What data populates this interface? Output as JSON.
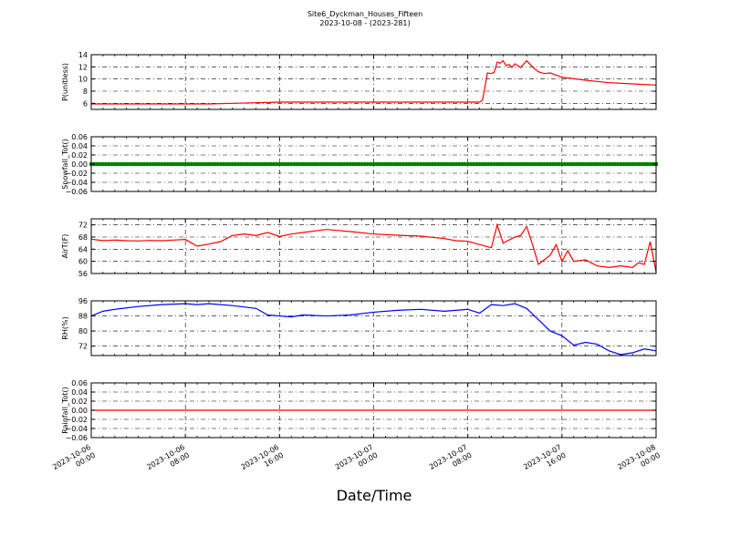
{
  "figure": {
    "title": "Site6_Dyckman_Houses_Fifteen",
    "subtitle": "2023-10-08 - (2023-281)",
    "xlabel": "Date/Time"
  },
  "chart_data": [
    {
      "type": "line",
      "ylabel": "P(unitless)",
      "ylim": [
        5,
        14
      ],
      "yticks": [
        "6",
        "8",
        "10",
        "12",
        "14"
      ],
      "ytick_values": [
        6,
        8,
        10,
        12,
        14
      ],
      "color": "#ff0000",
      "grid": true,
      "x": [
        "2023-10-06 00:00",
        "2023-10-06 04:00",
        "2023-10-06 08:00",
        "2023-10-06 10:00",
        "2023-10-06 12:00",
        "2023-10-06 14:00",
        "2023-10-06 16:00",
        "2023-10-06 20:00",
        "2023-10-07 00:00",
        "2023-10-07 04:00",
        "2023-10-07 08:00",
        "2023-10-07 09:00",
        "2023-10-07 09:15",
        "2023-10-07 09:40",
        "2023-10-07 10:00",
        "2023-10-07 10:15",
        "2023-10-07 10:30",
        "2023-10-07 10:45",
        "2023-10-07 11:00",
        "2023-10-07 11:15",
        "2023-10-07 11:30",
        "2023-10-07 11:45",
        "2023-10-07 12:00",
        "2023-10-07 12:30",
        "2023-10-07 13:00",
        "2023-10-07 13:30",
        "2023-10-07 14:00",
        "2023-10-07 14:30",
        "2023-10-07 15:00",
        "2023-10-07 16:00",
        "2023-10-07 18:00",
        "2023-10-07 20:00",
        "2023-10-07 22:00",
        "2023-10-08 00:00"
      ],
      "values": [
        5.9,
        5.9,
        5.9,
        5.9,
        6.0,
        6.1,
        6.2,
        6.2,
        6.2,
        6.2,
        6.2,
        6.2,
        6.5,
        11.0,
        10.9,
        11.1,
        12.8,
        12.6,
        13.0,
        12.2,
        12.4,
        11.9,
        12.5,
        11.9,
        13.0,
        12.0,
        11.2,
        10.9,
        11.0,
        10.3,
        9.8,
        9.4,
        9.2,
        9.0
      ]
    },
    {
      "type": "line",
      "ylabel": "Snowfall_Tot()",
      "ylim": [
        -0.06,
        0.06
      ],
      "yticks": [
        "0.06",
        "0.04",
        "0.02",
        "0.00",
        "−0.02",
        "−0.04",
        "−0.06"
      ],
      "ytick_values": [
        0.06,
        0.04,
        0.02,
        0.0,
        -0.02,
        -0.04,
        -0.06
      ],
      "color": "#008000",
      "markers": true,
      "grid": true,
      "x": [
        "2023-10-06 00:00",
        "2023-10-08 00:00"
      ],
      "values": [
        0.0,
        0.0
      ]
    },
    {
      "type": "line",
      "ylabel": "AirT(F)",
      "ylim": [
        56,
        74
      ],
      "yticks": [
        "56",
        "60",
        "64",
        "68",
        "72"
      ],
      "ytick_values": [
        56,
        60,
        64,
        68,
        72
      ],
      "color": "#ff0000",
      "grid": true,
      "x": [
        "2023-10-06 00:00",
        "2023-10-06 01:00",
        "2023-10-06 02:00",
        "2023-10-06 03:00",
        "2023-10-06 04:00",
        "2023-10-06 05:00",
        "2023-10-06 06:00",
        "2023-10-06 07:00",
        "2023-10-06 08:00",
        "2023-10-06 09:00",
        "2023-10-06 10:00",
        "2023-10-06 11:00",
        "2023-10-06 12:00",
        "2023-10-06 13:00",
        "2023-10-06 14:00",
        "2023-10-06 15:00",
        "2023-10-06 16:00",
        "2023-10-06 17:00",
        "2023-10-06 18:00",
        "2023-10-06 20:00",
        "2023-10-06 22:00",
        "2023-10-07 00:00",
        "2023-10-07 02:00",
        "2023-10-07 04:00",
        "2023-10-07 06:00",
        "2023-10-07 07:00",
        "2023-10-07 08:00",
        "2023-10-07 09:00",
        "2023-10-07 10:00",
        "2023-10-07 10:30",
        "2023-10-07 11:00",
        "2023-10-07 12:00",
        "2023-10-07 12:30",
        "2023-10-07 13:00",
        "2023-10-07 13:30",
        "2023-10-07 14:00",
        "2023-10-07 14:30",
        "2023-10-07 15:00",
        "2023-10-07 15:30",
        "2023-10-07 16:00",
        "2023-10-07 16:30",
        "2023-10-07 17:00",
        "2023-10-07 18:00",
        "2023-10-07 19:00",
        "2023-10-07 20:00",
        "2023-10-07 21:00",
        "2023-10-07 22:00",
        "2023-10-07 22:30",
        "2023-10-07 23:00",
        "2023-10-07 23:30",
        "2023-10-08 00:00"
      ],
      "values": [
        67.3,
        66.8,
        67.0,
        66.8,
        66.7,
        66.9,
        66.8,
        67.0,
        67.2,
        65.0,
        65.7,
        66.5,
        68.5,
        69.0,
        68.5,
        69.5,
        68.2,
        69.0,
        69.5,
        70.5,
        69.8,
        69.0,
        68.6,
        68.3,
        67.5,
        66.8,
        66.6,
        65.5,
        64.5,
        72.0,
        66.0,
        68.0,
        68.5,
        71.5,
        65.5,
        59.0,
        60.5,
        62.0,
        65.5,
        60.0,
        63.5,
        60.0,
        60.5,
        58.5,
        58.0,
        58.5,
        58.0,
        59.5,
        59.0,
        66.5,
        56.5
      ]
    },
    {
      "type": "line",
      "ylabel": "RH(%)",
      "ylim": [
        67,
        96
      ],
      "yticks": [
        "72",
        "80",
        "88",
        "96"
      ],
      "ytick_values": [
        72,
        80,
        88,
        96
      ],
      "color": "#0000ff",
      "grid": true,
      "x": [
        "2023-10-06 00:00",
        "2023-10-06 01:00",
        "2023-10-06 02:00",
        "2023-10-06 04:00",
        "2023-10-06 06:00",
        "2023-10-06 08:00",
        "2023-10-06 09:00",
        "2023-10-06 10:00",
        "2023-10-06 12:00",
        "2023-10-06 14:00",
        "2023-10-06 15:00",
        "2023-10-06 16:00",
        "2023-10-06 17:00",
        "2023-10-06 18:00",
        "2023-10-06 20:00",
        "2023-10-06 22:00",
        "2023-10-07 00:00",
        "2023-10-07 02:00",
        "2023-10-07 04:00",
        "2023-10-07 06:00",
        "2023-10-07 08:00",
        "2023-10-07 09:00",
        "2023-10-07 10:00",
        "2023-10-07 11:00",
        "2023-10-07 12:00",
        "2023-10-07 13:00",
        "2023-10-07 14:00",
        "2023-10-07 15:00",
        "2023-10-07 16:00",
        "2023-10-07 17:00",
        "2023-10-07 18:00",
        "2023-10-07 19:00",
        "2023-10-07 20:00",
        "2023-10-07 21:00",
        "2023-10-07 22:00",
        "2023-10-07 23:00",
        "2023-10-08 00:00"
      ],
      "values": [
        88.0,
        90.5,
        91.5,
        93.0,
        94.0,
        94.5,
        94.0,
        94.5,
        93.5,
        92.0,
        88.5,
        88.0,
        87.5,
        88.5,
        88.0,
        88.5,
        90.0,
        91.0,
        91.5,
        90.5,
        91.5,
        89.5,
        94.0,
        93.5,
        94.5,
        92.0,
        86.0,
        80.0,
        77.5,
        72.5,
        74.0,
        73.0,
        69.5,
        67.5,
        68.5,
        70.5,
        69.5
      ]
    },
    {
      "type": "line",
      "ylabel": "Rainfall_Tot()",
      "ylim": [
        -0.06,
        0.06
      ],
      "yticks": [
        "0.06",
        "0.04",
        "0.02",
        "0.00",
        "−0.02",
        "−0.04",
        "−0.06"
      ],
      "ytick_values": [
        0.06,
        0.04,
        0.02,
        0.0,
        -0.02,
        -0.04,
        -0.06
      ],
      "color": "#ff0000",
      "grid": true,
      "x": [
        "2023-10-06 00:00",
        "2023-10-08 00:00"
      ],
      "values": [
        0.0,
        0.0
      ]
    }
  ],
  "x_axis": {
    "ticks": [
      {
        "line1": "2023-10-06",
        "line2": "00:00"
      },
      {
        "line1": "2023-10-06",
        "line2": "08:00"
      },
      {
        "line1": "2023-10-06",
        "line2": "16:00"
      },
      {
        "line1": "2023-10-07",
        "line2": "00:00"
      },
      {
        "line1": "2023-10-07",
        "line2": "08:00"
      },
      {
        "line1": "2023-10-07",
        "line2": "16:00"
      },
      {
        "line1": "2023-10-08",
        "line2": "00:00"
      }
    ],
    "range": [
      "2023-10-06 00:00",
      "2023-10-08 00:00"
    ]
  }
}
